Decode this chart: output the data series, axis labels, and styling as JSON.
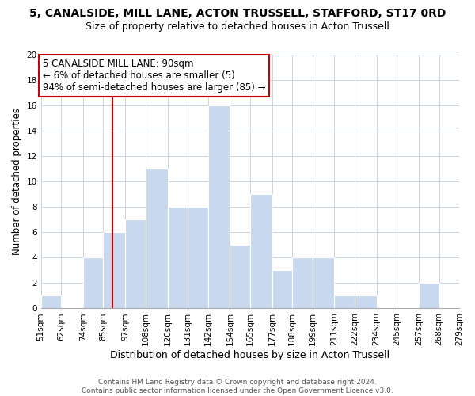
{
  "title": "5, CANALSIDE, MILL LANE, ACTON TRUSSELL, STAFFORD, ST17 0RD",
  "subtitle": "Size of property relative to detached houses in Acton Trussell",
  "xlabel": "Distribution of detached houses by size in Acton Trussell",
  "ylabel": "Number of detached properties",
  "bin_edges": [
    51,
    62,
    74,
    85,
    97,
    108,
    120,
    131,
    142,
    154,
    165,
    177,
    188,
    199,
    211,
    222,
    234,
    245,
    257,
    268,
    279
  ],
  "bin_labels": [
    "51sqm",
    "62sqm",
    "74sqm",
    "85sqm",
    "97sqm",
    "108sqm",
    "120sqm",
    "131sqm",
    "142sqm",
    "154sqm",
    "165sqm",
    "177sqm",
    "188sqm",
    "199sqm",
    "211sqm",
    "222sqm",
    "234sqm",
    "245sqm",
    "257sqm",
    "268sqm",
    "279sqm"
  ],
  "counts": [
    1,
    0,
    4,
    6,
    7,
    11,
    8,
    8,
    16,
    5,
    9,
    3,
    4,
    4,
    1,
    1,
    0,
    0,
    2,
    0
  ],
  "bar_color": "#c8d8ee",
  "bar_edge_color": "#ffffff",
  "property_line_x": 90,
  "property_line_color": "#cc0000",
  "annotation_line1": "5 CANALSIDE MILL LANE: 90sqm",
  "annotation_line2": "← 6% of detached houses are smaller (5)",
  "annotation_line3": "94% of semi-detached houses are larger (85) →",
  "annotation_box_edge_color": "#cc0000",
  "annotation_box_facecolor": "#ffffff",
  "ylim": [
    0,
    20
  ],
  "yticks": [
    0,
    2,
    4,
    6,
    8,
    10,
    12,
    14,
    16,
    18,
    20
  ],
  "grid_color": "#c8d4e0",
  "footer_text": "Contains HM Land Registry data © Crown copyright and database right 2024.\nContains public sector information licensed under the Open Government Licence v3.0.",
  "title_fontsize": 10,
  "subtitle_fontsize": 9,
  "xlabel_fontsize": 9,
  "ylabel_fontsize": 8.5,
  "tick_fontsize": 7.5,
  "footer_fontsize": 6.5,
  "annotation_fontsize": 8.5,
  "background_color": "#ffffff"
}
